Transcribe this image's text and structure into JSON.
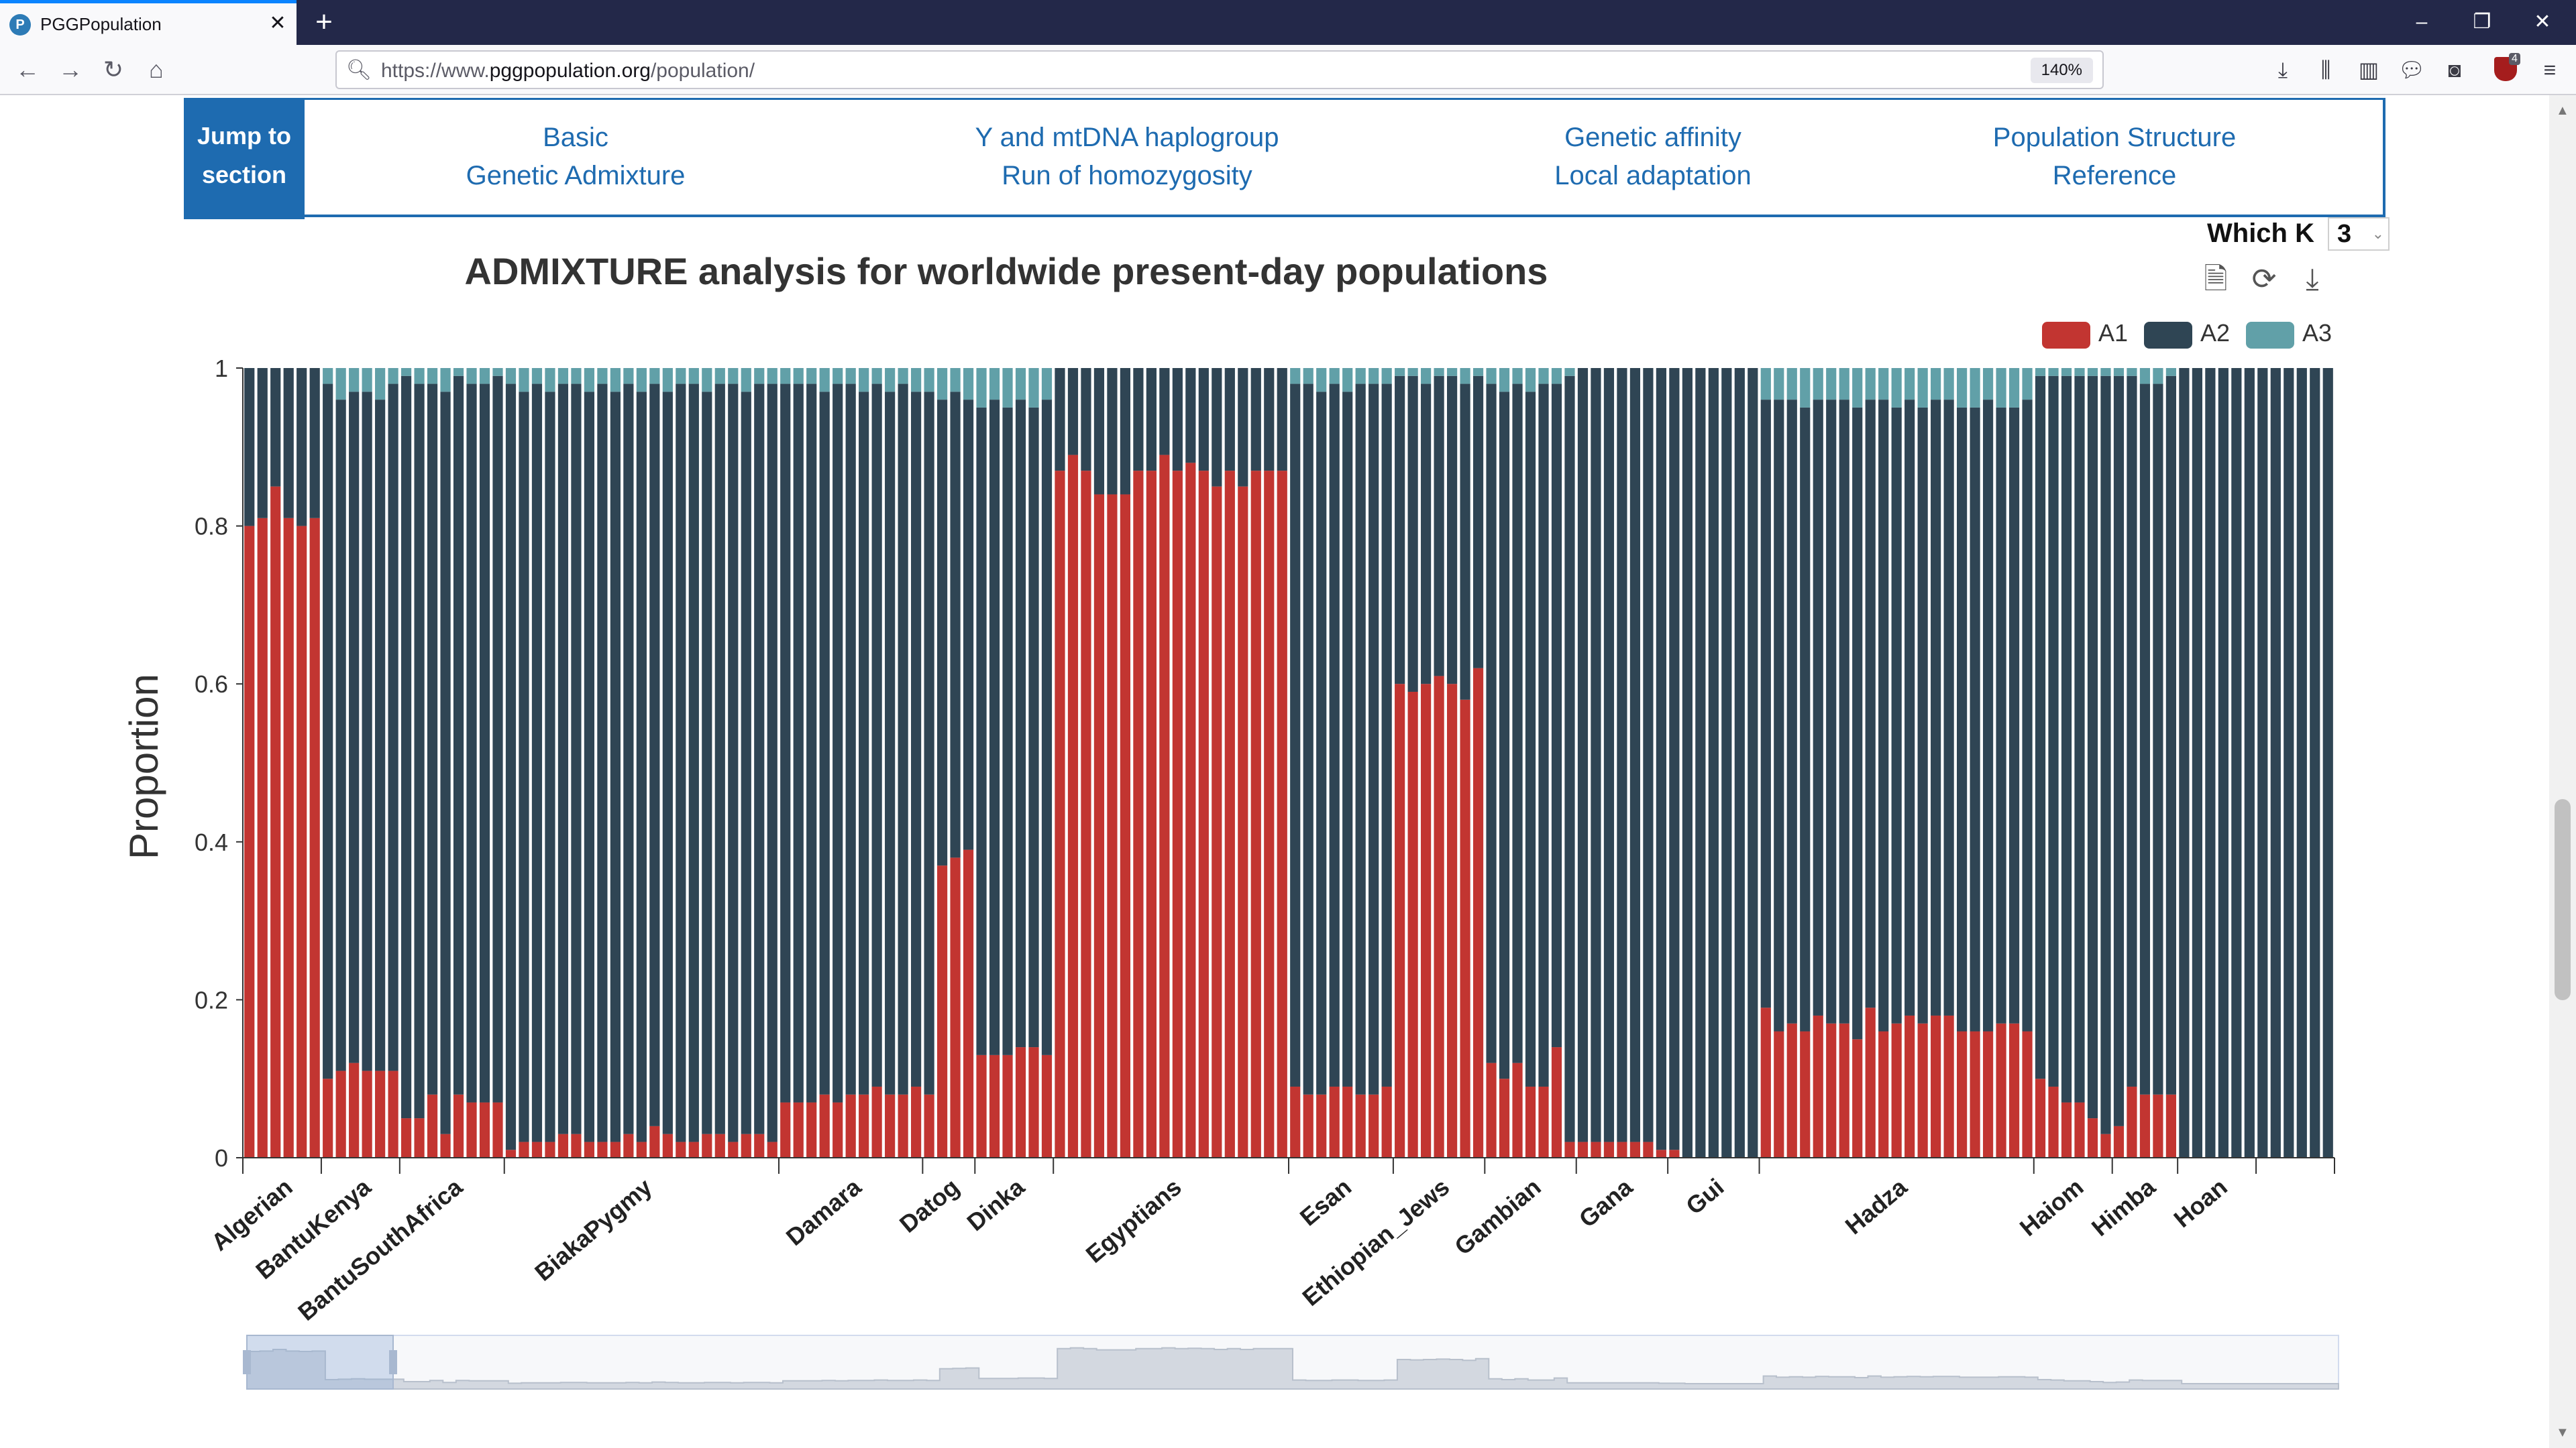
{
  "browser": {
    "tab_title": "PGGPopulation",
    "url_prefix": "https://www.",
    "url_domain": "pggpopulation.org",
    "url_path": "/population/",
    "zoom": "140%",
    "extension_count": "4"
  },
  "jump": {
    "label_line1": "Jump to",
    "label_line2": "section",
    "links": [
      [
        "Basic",
        "Genetic Admixture"
      ],
      [
        "Y and mtDNA haplogroup",
        "Run of homozygosity"
      ],
      [
        "Genetic affinity",
        "Local adaptation"
      ],
      [
        "Population Structure",
        "Reference"
      ]
    ]
  },
  "which_k": {
    "label": "Which K",
    "value": "3"
  },
  "chart_data": {
    "type": "bar",
    "stacked": true,
    "title": "ADMIXTURE analysis for worldwide present-day populations",
    "ylabel": "Proportion",
    "xlabel": "",
    "ylim": [
      0,
      1
    ],
    "yticks": [
      "0",
      "0.2",
      "0.4",
      "0.6",
      "0.8",
      "1"
    ],
    "legend": {
      "position": "top-right",
      "entries": [
        "A1",
        "A2",
        "A3"
      ]
    },
    "colors": {
      "A1": "#c23531",
      "A2": "#2f4554",
      "A3": "#61a0a8"
    },
    "groups": [
      {
        "name": "Algerian",
        "a1": [
          0.8,
          0.81,
          0.85,
          0.81,
          0.8,
          0.81
        ],
        "a3": [
          0,
          0,
          0,
          0,
          0,
          0
        ]
      },
      {
        "name": "BantuKenya",
        "a1": [
          0.1,
          0.11,
          0.12,
          0.11,
          0.11,
          0.11
        ],
        "a3": [
          0.02,
          0.04,
          0.03,
          0.03,
          0.04,
          0.02
        ]
      },
      {
        "name": "BantuSouthAfrica",
        "a1": [
          0.05,
          0.05,
          0.08,
          0.03,
          0.08,
          0.07,
          0.07,
          0.07
        ],
        "a3": [
          0.01,
          0.02,
          0.02,
          0.03,
          0.01,
          0.02,
          0.02,
          0.01
        ]
      },
      {
        "name": "BiakaPygmy",
        "a1": [
          0.01,
          0.02,
          0.02,
          0.02,
          0.03,
          0.03,
          0.02,
          0.02,
          0.02,
          0.03,
          0.02,
          0.04,
          0.03,
          0.02,
          0.02,
          0.03,
          0.03,
          0.02,
          0.03,
          0.03,
          0.02
        ],
        "a3": [
          0.02,
          0.03,
          0.02,
          0.03,
          0.02,
          0.02,
          0.03,
          0.02,
          0.03,
          0.02,
          0.03,
          0.02,
          0.03,
          0.02,
          0.02,
          0.03,
          0.02,
          0.02,
          0.03,
          0.02,
          0.02
        ]
      },
      {
        "name": "Damara",
        "a1": [
          0.07,
          0.07,
          0.07,
          0.08,
          0.07,
          0.08,
          0.08,
          0.09,
          0.08,
          0.08,
          0.09
        ],
        "a3": [
          0.02,
          0.02,
          0.02,
          0.03,
          0.02,
          0.02,
          0.03,
          0.02,
          0.03,
          0.02,
          0.03
        ]
      },
      {
        "name": "Datog",
        "a1": [
          0.08,
          0.37,
          0.38,
          0.39
        ],
        "a3": [
          0.03,
          0.04,
          0.03,
          0.04
        ]
      },
      {
        "name": "Dinka",
        "a1": [
          0.13,
          0.13,
          0.13,
          0.14,
          0.14,
          0.13
        ],
        "a3": [
          0.05,
          0.04,
          0.05,
          0.04,
          0.05,
          0.04
        ]
      },
      {
        "name": "Egyptians",
        "a1": [
          0.87,
          0.89,
          0.87,
          0.84,
          0.84,
          0.84,
          0.87,
          0.87,
          0.89,
          0.87,
          0.88,
          0.87,
          0.85,
          0.87,
          0.85,
          0.87,
          0.87,
          0.87
        ],
        "a3": [
          0,
          0,
          0,
          0,
          0,
          0,
          0,
          0,
          0,
          0,
          0,
          0,
          0,
          0,
          0,
          0,
          0,
          0
        ]
      },
      {
        "name": "Esan",
        "a1": [
          0.09,
          0.08,
          0.08,
          0.09,
          0.09,
          0.08,
          0.08,
          0.09
        ],
        "a3": [
          0.02,
          0.02,
          0.03,
          0.02,
          0.03,
          0.02,
          0.02,
          0.02
        ]
      },
      {
        "name": "Ethiopian_Jews",
        "a1": [
          0.6,
          0.59,
          0.6,
          0.61,
          0.6,
          0.58,
          0.62
        ],
        "a3": [
          0.01,
          0.01,
          0.02,
          0.01,
          0.01,
          0.02,
          0.01
        ]
      },
      {
        "name": "Gambian",
        "a1": [
          0.12,
          0.1,
          0.12,
          0.09,
          0.09,
          0.14,
          0.02
        ],
        "a3": [
          0.02,
          0.03,
          0.02,
          0.03,
          0.02,
          0.02,
          0.01
        ]
      },
      {
        "name": "Gana",
        "a1": [
          0.02,
          0.02,
          0.02,
          0.02,
          0.02,
          0.02,
          0.01
        ],
        "a3": [
          0,
          0,
          0,
          0,
          0,
          0,
          0
        ]
      },
      {
        "name": "Gui",
        "a1": [
          0.01,
          0,
          0,
          0,
          0,
          0,
          0
        ],
        "a3": [
          0,
          0,
          0,
          0,
          0,
          0,
          0
        ]
      },
      {
        "name": "Hadza",
        "a1": [
          0.19,
          0.16,
          0.17,
          0.16,
          0.18,
          0.17,
          0.17,
          0.15,
          0.19,
          0.16,
          0.17,
          0.18,
          0.17,
          0.18,
          0.18,
          0.16,
          0.16,
          0.16,
          0.17,
          0.17,
          0.16
        ],
        "a3": [
          0.04,
          0.04,
          0.04,
          0.05,
          0.04,
          0.04,
          0.04,
          0.05,
          0.04,
          0.04,
          0.05,
          0.04,
          0.05,
          0.04,
          0.04,
          0.05,
          0.05,
          0.04,
          0.05,
          0.05,
          0.04
        ]
      },
      {
        "name": "Haiom",
        "a1": [
          0.1,
          0.09,
          0.07,
          0.07,
          0.05,
          0.03
        ],
        "a3": [
          0.01,
          0.01,
          0.01,
          0.01,
          0.01,
          0.01
        ]
      },
      {
        "name": "Himba",
        "a1": [
          0.04,
          0.09,
          0.08,
          0.08,
          0.08
        ],
        "a3": [
          0.01,
          0.01,
          0.02,
          0.02,
          0.01
        ]
      },
      {
        "name": "Hoan",
        "a1": [
          0,
          0,
          0,
          0,
          0,
          0
        ],
        "a3": [
          0,
          0,
          0,
          0,
          0,
          0
        ]
      },
      {
        "name": "",
        "a1": [
          0,
          0,
          0,
          0,
          0,
          0
        ],
        "a3": [
          0,
          0,
          0,
          0,
          0,
          0
        ]
      }
    ]
  }
}
